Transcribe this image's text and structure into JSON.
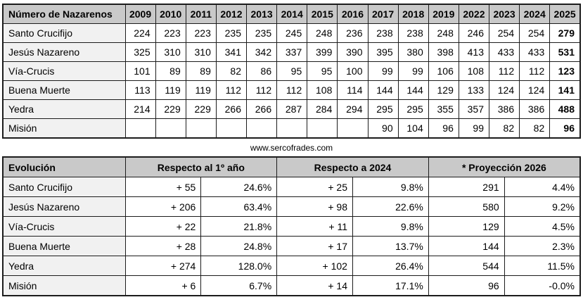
{
  "caption": "www.sercofrades.com",
  "colors": {
    "blue": "#4788ba",
    "orange": "#d09d2e",
    "green": "#55912d",
    "header_bg": "#c9c9c9",
    "label_bg": "#f1f1f1",
    "border": "#1c1c1c"
  },
  "top_table": {
    "title": "Número de Nazarenos",
    "years": [
      "2009",
      "2010",
      "2011",
      "2012",
      "2013",
      "2014",
      "2015",
      "2016",
      "2017",
      "2018",
      "2019",
      "2022",
      "2023",
      "2024",
      "2025"
    ],
    "rows": [
      {
        "label": "Santo Crucifijo",
        "values": [
          "224",
          "223",
          "223",
          "235",
          "235",
          "245",
          "248",
          "236",
          "238",
          "238",
          "248",
          "246",
          "254",
          "254",
          "279"
        ],
        "styles": [
          "",
          "",
          "blue",
          "",
          "blue",
          "",
          "",
          "",
          "",
          "blue",
          "",
          "",
          "",
          "blue",
          "bold"
        ]
      },
      {
        "label": "Jesús Nazareno",
        "values": [
          "325",
          "310",
          "310",
          "341",
          "342",
          "337",
          "399",
          "390",
          "395",
          "380",
          "398",
          "413",
          "433",
          "433",
          "531"
        ],
        "styles": [
          "",
          "",
          "blue",
          "",
          "",
          "",
          "",
          "",
          "",
          "",
          "",
          "",
          "",
          "blue",
          "bold"
        ]
      },
      {
        "label": "Vía-Crucis",
        "values": [
          "101",
          "89",
          "89",
          "82",
          "86",
          "95",
          "95",
          "100",
          "99",
          "99",
          "106",
          "108",
          "112",
          "112",
          "123"
        ],
        "styles": [
          "",
          "",
          "blue",
          "",
          "",
          "",
          "",
          "",
          "",
          "blue",
          "",
          "",
          "",
          "blue",
          "bold"
        ]
      },
      {
        "label": "Buena Muerte",
        "values": [
          "113",
          "119",
          "119",
          "112",
          "112",
          "112",
          "108",
          "114",
          "144",
          "144",
          "129",
          "133",
          "124",
          "124",
          "141"
        ],
        "styles": [
          "",
          "",
          "blue",
          "",
          "blue",
          "",
          "",
          "",
          "",
          "blue",
          "",
          "",
          "",
          "blue",
          "bold"
        ]
      },
      {
        "label": "Yedra",
        "values": [
          "214",
          "229",
          "229",
          "266",
          "266",
          "287",
          "284",
          "294",
          "295",
          "295",
          "355",
          "357",
          "386",
          "386",
          "488"
        ],
        "styles": [
          "",
          "",
          "blue",
          "",
          "blue",
          "",
          "",
          "",
          "",
          "blue",
          "",
          "",
          "",
          "blue",
          "bold"
        ]
      },
      {
        "label": "Misión",
        "values": [
          "",
          "",
          "",
          "",
          "",
          "",
          "",
          "",
          "90",
          "104",
          "96",
          "99",
          "82",
          "82",
          "96"
        ],
        "styles": [
          "",
          "",
          "",
          "",
          "",
          "",
          "",
          "",
          "orange",
          "orange",
          "orange",
          "",
          "",
          "blue",
          "bold"
        ]
      }
    ]
  },
  "bottom_table": {
    "title": "Evolución",
    "groups": [
      "Respecto al 1º año",
      "Respecto a 2024",
      "* Proyección 2026"
    ],
    "rows": [
      {
        "label": "Santo Crucifijo",
        "values": [
          "+ 55",
          "24.6%",
          "+ 25",
          "9.8%",
          "291",
          "4.4%"
        ],
        "styles": [
          "green",
          "green",
          "green",
          "green",
          "green",
          "green"
        ]
      },
      {
        "label": "Jesús Nazareno",
        "values": [
          "+ 206",
          "63.4%",
          "+ 98",
          "22.6%",
          "580",
          "9.2%"
        ],
        "styles": [
          "green",
          "green",
          "green",
          "green",
          "green",
          "green"
        ]
      },
      {
        "label": "Vía-Crucis",
        "values": [
          "+ 22",
          "21.8%",
          "+ 11",
          "9.8%",
          "129",
          "4.5%"
        ],
        "styles": [
          "green",
          "green",
          "green",
          "green",
          "green",
          "green"
        ]
      },
      {
        "label": "Buena Muerte",
        "values": [
          "+ 28",
          "24.8%",
          "+ 17",
          "13.7%",
          "144",
          "2.3%"
        ],
        "styles": [
          "green",
          "green",
          "green",
          "green",
          "green",
          "green"
        ]
      },
      {
        "label": "Yedra",
        "values": [
          "+ 274",
          "128.0%",
          "+ 102",
          "26.4%",
          "544",
          "11.5%"
        ],
        "styles": [
          "green",
          "green",
          "green",
          "green",
          "green",
          "green"
        ]
      },
      {
        "label": "Misión",
        "values": [
          "+ 6",
          "6.7%",
          "+ 14",
          "17.1%",
          "96",
          "-0.0%"
        ],
        "styles": [
          "green",
          "green",
          "green",
          "green",
          "",
          ""
        ]
      }
    ]
  }
}
